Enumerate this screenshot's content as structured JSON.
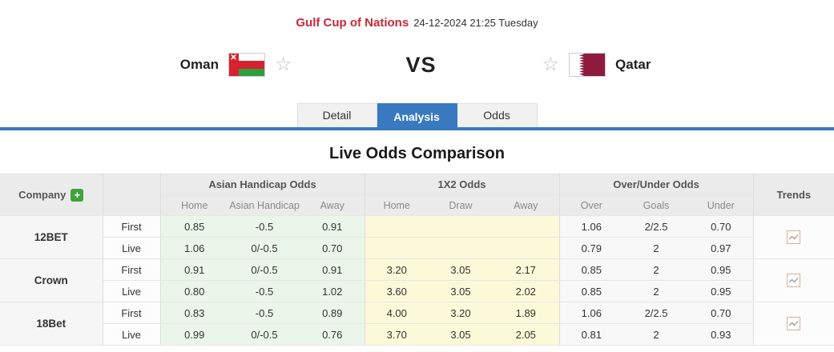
{
  "header": {
    "league": "Gulf Cup of Nations",
    "datetime": "24-12-2024 21:25 Tuesday"
  },
  "match": {
    "home_team": "Oman",
    "away_team": "Qatar",
    "vs_label": "VS"
  },
  "tabs": [
    {
      "label": "Detail",
      "active": false
    },
    {
      "label": "Analysis",
      "active": true
    },
    {
      "label": "Odds",
      "active": false
    }
  ],
  "section_title": "Live Odds Comparison",
  "icons": {
    "favorite": "☆",
    "add_company": "+",
    "trends": "zigzag-line-chart"
  },
  "colors": {
    "accent_red": "#cc2936",
    "accent_blue": "#3879c0",
    "add_button_green": "#3fa33a",
    "asian_handicap_bg": "#eaf6e9",
    "one_x_two_bg": "#fcf9d8",
    "qatar_maroon": "#8d1b3d",
    "oman_red": "#d8212f",
    "oman_green": "#2e9e3f"
  },
  "table": {
    "company_header": "Company",
    "trends_header": "Trends",
    "groups": [
      {
        "label": "Asian Handicap Odds",
        "columns": [
          "Home",
          "Asian Handicap",
          "Away"
        ]
      },
      {
        "label": "1X2 Odds",
        "columns": [
          "Home",
          "Draw",
          "Away"
        ]
      },
      {
        "label": "Over/Under Odds",
        "columns": [
          "Over",
          "Goals",
          "Under"
        ]
      }
    ],
    "companies": [
      {
        "name": "12BET",
        "rows": [
          {
            "type": "First",
            "asian_handicap": [
              "0.85",
              "-0.5",
              "0.91"
            ],
            "one_x_two": [
              "",
              "",
              ""
            ],
            "over_under": [
              "1.06",
              "2/2.5",
              "0.70"
            ]
          },
          {
            "type": "Live",
            "asian_handicap": [
              "1.06",
              "0/-0.5",
              "0.70"
            ],
            "one_x_two": [
              "",
              "",
              ""
            ],
            "over_under": [
              "0.79",
              "2",
              "0.97"
            ]
          }
        ]
      },
      {
        "name": "Crown",
        "rows": [
          {
            "type": "First",
            "asian_handicap": [
              "0.91",
              "0/-0.5",
              "0.91"
            ],
            "one_x_two": [
              "3.20",
              "3.05",
              "2.17"
            ],
            "over_under": [
              "0.85",
              "2",
              "0.95"
            ]
          },
          {
            "type": "Live",
            "asian_handicap": [
              "0.80",
              "-0.5",
              "1.02"
            ],
            "one_x_two": [
              "3.60",
              "3.05",
              "2.02"
            ],
            "over_under": [
              "0.85",
              "2",
              "0.95"
            ]
          }
        ]
      },
      {
        "name": "18Bet",
        "rows": [
          {
            "type": "First",
            "asian_handicap": [
              "0.83",
              "-0.5",
              "0.89"
            ],
            "one_x_two": [
              "4.00",
              "3.20",
              "1.89"
            ],
            "over_under": [
              "1.06",
              "2/2.5",
              "0.70"
            ]
          },
          {
            "type": "Live",
            "asian_handicap": [
              "0.99",
              "0/-0.5",
              "0.76"
            ],
            "one_x_two": [
              "3.70",
              "3.05",
              "2.05"
            ],
            "over_under": [
              "0.81",
              "2",
              "0.93"
            ]
          }
        ]
      }
    ]
  }
}
